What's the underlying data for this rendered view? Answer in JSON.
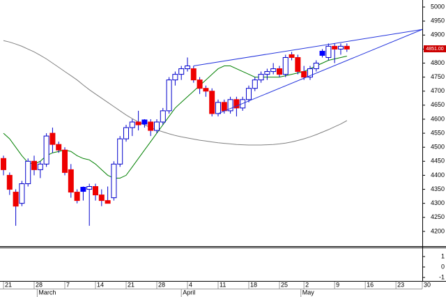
{
  "chart_data": [
    {
      "type": "candlestick",
      "colors": {
        "up_fill": "#ffffff",
        "up_edge": "#0000cc",
        "down_fill": "#ee0000",
        "flat_fill": "#0000ff",
        "wick": "#0000cc",
        "ma_fast": "#008000",
        "ma_slow": "#808080",
        "trend": "#2233dd",
        "last_box": "#cc0000"
      },
      "x": [
        0,
        1,
        2,
        3,
        4,
        5,
        6,
        7,
        8,
        9,
        10,
        11,
        12,
        13,
        14,
        15,
        16,
        17,
        18,
        19,
        20,
        21,
        22,
        23,
        24,
        25,
        26,
        27,
        28,
        29,
        30,
        31,
        32,
        33,
        34,
        35,
        36,
        37,
        38,
        39,
        40,
        41,
        42,
        43,
        44,
        45,
        46,
        47,
        48,
        49,
        50,
        51,
        52,
        53,
        54,
        55,
        56
      ],
      "open": [
        4460,
        4400,
        4340,
        4300,
        4370,
        4450,
        4420,
        4440,
        4550,
        4510,
        4490,
        4420,
        4340,
        4350,
        4350,
        4360,
        4330,
        4310,
        4320,
        4440,
        4530,
        4570,
        4590,
        4590,
        4590,
        4560,
        4590,
        4630,
        4740,
        4760,
        4780,
        4780,
        4740,
        4710,
        4700,
        4620,
        4660,
        4630,
        4670,
        4640,
        4670,
        4710,
        4740,
        4760,
        4770,
        4780,
        4760,
        4830,
        4820,
        4770,
        4750,
        4780,
        4835,
        4820,
        4860,
        4850,
        4860
      ],
      "high": [
        4470,
        4410,
        4350,
        4380,
        4460,
        4470,
        4450,
        4550,
        4570,
        4520,
        4500,
        4440,
        4350,
        4360,
        4370,
        4370,
        4350,
        4360,
        4450,
        4540,
        4580,
        4600,
        4630,
        4600,
        4600,
        4600,
        4640,
        4750,
        4770,
        4790,
        4820,
        4790,
        4750,
        4720,
        4710,
        4670,
        4670,
        4680,
        4680,
        4680,
        4720,
        4750,
        4770,
        4780,
        4800,
        4790,
        4830,
        4840,
        4830,
        4790,
        4790,
        4810,
        4850,
        4870,
        4870,
        4870,
        4870
      ],
      "low": [
        4400,
        4330,
        4220,
        4290,
        4360,
        4400,
        4390,
        4430,
        4480,
        4480,
        4400,
        4320,
        4300,
        4310,
        4220,
        4310,
        4290,
        4300,
        4310,
        4430,
        4520,
        4540,
        4560,
        4570,
        4540,
        4550,
        4580,
        4620,
        4720,
        4740,
        4770,
        4730,
        4690,
        4680,
        4610,
        4610,
        4620,
        4620,
        4610,
        4630,
        4660,
        4700,
        4730,
        4740,
        4760,
        4750,
        4750,
        4810,
        4760,
        4740,
        4740,
        4770,
        4820,
        4810,
        4800,
        4830,
        4840
      ],
      "close": [
        4420,
        4350,
        4290,
        4370,
        4450,
        4420,
        4440,
        4540,
        4510,
        4490,
        4410,
        4340,
        4310,
        4350,
        4360,
        4330,
        4310,
        4300,
        4440,
        4530,
        4570,
        4590,
        4580,
        4590,
        4560,
        4590,
        4630,
        4740,
        4760,
        4780,
        4790,
        4740,
        4710,
        4700,
        4620,
        4660,
        4630,
        4670,
        4640,
        4670,
        4710,
        4740,
        4760,
        4770,
        4780,
        4760,
        4820,
        4820,
        4770,
        4750,
        4780,
        4800,
        4835,
        4860,
        4850,
        4860,
        4850
      ],
      "ma_fast": [
        4550,
        4530,
        4500,
        4470,
        4445,
        4440,
        4450,
        4470,
        4480,
        4485,
        4490,
        4485,
        4470,
        4460,
        4455,
        4440,
        4420,
        4400,
        4390,
        4390,
        4400,
        4430,
        4460,
        4490,
        4520,
        4550,
        4580,
        4610,
        4640,
        4660,
        4680,
        4700,
        4720,
        4740,
        4760,
        4780,
        4790,
        4790,
        4780,
        4770,
        4760,
        4750,
        4750,
        4750,
        4750,
        4750,
        4755,
        4760,
        4765,
        4770,
        4780,
        4790,
        4800,
        4810,
        4815,
        4820,
        4825
      ],
      "ma_slow": [
        4880,
        4875,
        4868,
        4860,
        4850,
        4840,
        4828,
        4815,
        4800,
        4785,
        4770,
        4755,
        4740,
        4722,
        4705,
        4690,
        4675,
        4660,
        4645,
        4630,
        4615,
        4602,
        4590,
        4580,
        4570,
        4562,
        4555,
        4548,
        4542,
        4537,
        4533,
        4529,
        4525,
        4522,
        4519,
        4516,
        4514,
        4512,
        4510,
        4509,
        4508,
        4508,
        4508,
        4509,
        4510,
        4512,
        4515,
        4519,
        4524,
        4530,
        4537,
        4545,
        4554,
        4563,
        4573,
        4583,
        4595
      ],
      "trendlines": [
        {
          "x": [
            31,
            68.3
          ],
          "values": [
            4790,
            4920
          ]
        },
        {
          "x": [
            35,
            68.3
          ],
          "values": [
            4620,
            4920
          ]
        }
      ],
      "last": {
        "value": 4851,
        "label": "4851.00"
      },
      "xlim": [
        -0.57,
        68.3
      ],
      "ylim": [
        4150,
        5025
      ],
      "yticks": [
        4200,
        4250,
        4300,
        4350,
        4400,
        4450,
        4500,
        4550,
        4600,
        4650,
        4700,
        4750,
        4800,
        4850,
        4900,
        4950,
        5000
      ],
      "xticks": [
        {
          "value": 0,
          "label": "21"
        },
        {
          "value": 5,
          "label": "28"
        },
        {
          "value": 10,
          "label": "7"
        },
        {
          "value": 15,
          "label": "14"
        },
        {
          "value": 20,
          "label": "21"
        },
        {
          "value": 25,
          "label": "28"
        },
        {
          "value": 30,
          "label": "4"
        },
        {
          "value": 35,
          "label": "11"
        },
        {
          "value": 40,
          "label": "18"
        },
        {
          "value": 45,
          "label": "25"
        },
        {
          "value": 49,
          "label": "2"
        },
        {
          "value": 54,
          "label": "9"
        },
        {
          "value": 59,
          "label": "16"
        },
        {
          "value": 64,
          "label": "23"
        },
        {
          "value": 68.3,
          "label": "30"
        }
      ],
      "months": [
        {
          "value": 5.5,
          "label": "March"
        },
        {
          "value": 29,
          "label": "April"
        },
        {
          "value": 48.5,
          "label": "May"
        }
      ]
    },
    {
      "type": "indicator",
      "ylim": [
        -1.27,
        1.8
      ],
      "yticks": [
        1,
        0,
        -1
      ]
    }
  ]
}
